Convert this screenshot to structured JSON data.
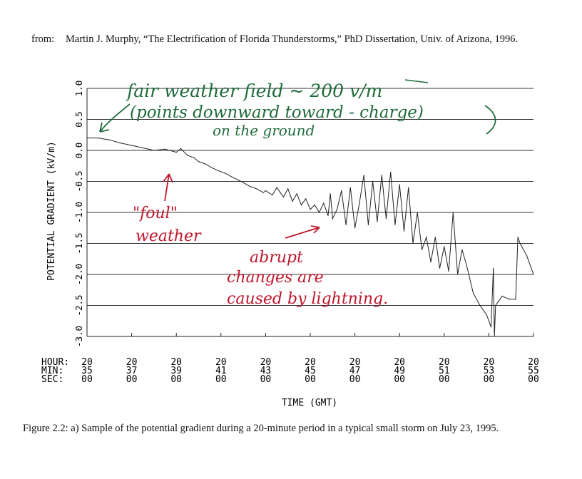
{
  "source": {
    "label": "from:",
    "citation": "Martin J. Murphy, “The Electrification of Florida Thunderstorms,” PhD Dissertation, Univ. of Arizona, 1996."
  },
  "caption": "Figure 2.2: a) Sample of the potential gradient during a 20-minute period in a typical small storm on July 23, 1995.",
  "chart_data": {
    "type": "line",
    "title": "",
    "xlabel": "TIME (GMT)",
    "ylabel": "POTENTIAL GRADIENT (kV/m)",
    "ylim": [
      -3.0,
      1.0
    ],
    "xlim": [
      "20:35:00",
      "20:55:00"
    ],
    "y_ticks": [
      "1.0",
      "0.5",
      "0.0",
      "-0.5",
      "-1.0",
      "-1.5",
      "-2.0",
      "-2.5",
      "-3.0"
    ],
    "y_tick_values": [
      1.0,
      0.5,
      0.0,
      -0.5,
      -1.0,
      -1.5,
      -2.0,
      -2.5,
      -3.0
    ],
    "x_tick_minutes": [
      35,
      37,
      39,
      41,
      43,
      45,
      47,
      49,
      51,
      53,
      55
    ],
    "x_tick_row_labels": [
      "HOUR:",
      "MIN:",
      "SEC:"
    ],
    "x_tick_hours": [
      "20",
      "20",
      "20",
      "20",
      "20",
      "20",
      "20",
      "20",
      "20",
      "20",
      "20"
    ],
    "x_tick_mins": [
      "35",
      "37",
      "39",
      "41",
      "43",
      "45",
      "47",
      "49",
      "51",
      "53",
      "55"
    ],
    "x_tick_secs": [
      "00",
      "00",
      "00",
      "00",
      "00",
      "00",
      "00",
      "00",
      "00",
      "00",
      "00"
    ],
    "grid": "horizontal",
    "series": [
      {
        "x_minutes": [
          35.0,
          35.5,
          36.0,
          36.5,
          37.0,
          37.5,
          38.0,
          38.5,
          39.0,
          39.2,
          39.5,
          39.8,
          40.0,
          40.3,
          40.6,
          40.9,
          41.2,
          41.5,
          41.8,
          42.0,
          42.3,
          42.6,
          42.9,
          43.0,
          43.3,
          43.5,
          43.8,
          44.0,
          44.2,
          44.4,
          44.6,
          44.8,
          45.0,
          45.2,
          45.4,
          45.6,
          45.8,
          45.9,
          46.0,
          46.2,
          46.4,
          46.6,
          46.8,
          47.0,
          47.2,
          47.4,
          47.6,
          47.8,
          48.0,
          48.2,
          48.4,
          48.6,
          48.8,
          49.0,
          49.2,
          49.4,
          49.6,
          49.8,
          50.0,
          50.2,
          50.4,
          50.6,
          50.8,
          51.0,
          51.2,
          51.4,
          51.6,
          51.8,
          52.0,
          52.3,
          52.6,
          52.9,
          53.1,
          53.2,
          53.25,
          53.3,
          53.6,
          53.9,
          54.2,
          54.3,
          54.4,
          54.7,
          55.0
        ],
        "values": [
          0.2,
          0.2,
          0.17,
          0.12,
          0.08,
          0.04,
          0.0,
          0.02,
          -0.03,
          0.03,
          -0.08,
          -0.12,
          -0.18,
          -0.22,
          -0.28,
          -0.33,
          -0.37,
          -0.43,
          -0.48,
          -0.52,
          -0.58,
          -0.62,
          -0.68,
          -0.65,
          -0.72,
          -0.6,
          -0.75,
          -0.62,
          -0.82,
          -0.7,
          -0.88,
          -0.78,
          -0.95,
          -0.88,
          -1.0,
          -0.85,
          -1.05,
          -0.7,
          -1.1,
          -0.95,
          -0.65,
          -1.2,
          -0.6,
          -1.25,
          -0.85,
          -0.4,
          -1.2,
          -0.5,
          -1.15,
          -0.4,
          -1.1,
          -0.35,
          -1.2,
          -0.55,
          -1.3,
          -0.6,
          -1.5,
          -1.0,
          -1.6,
          -1.4,
          -1.8,
          -1.4,
          -1.9,
          -1.55,
          -1.95,
          -1.0,
          -2.0,
          -1.6,
          -1.85,
          -2.3,
          -2.5,
          -2.65,
          -2.85,
          -1.9,
          -3.0,
          -2.5,
          -2.35,
          -2.4,
          -2.4,
          -1.4,
          -1.5,
          -1.7,
          -2.0
        ]
      }
    ],
    "annotations": [
      "fair weather field ~ 200 v/m",
      "(points downward toward - charge)",
      "on the ground",
      "\"foul\"",
      "weather",
      "abrupt",
      "changes are",
      "caused by lightning."
    ],
    "green_ink": "#1f6b3a",
    "red_ink": "#c0162b"
  }
}
